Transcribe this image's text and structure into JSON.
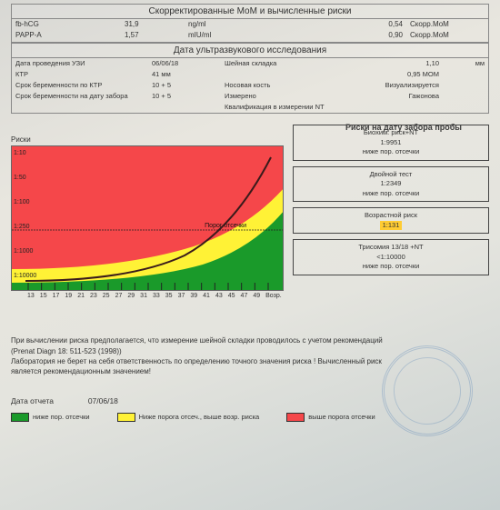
{
  "section1": {
    "title": "Скорректированные МоМ и вычисленные риски",
    "rows": [
      {
        "l": "fb-hCG",
        "v": "31,9",
        "u": "ng/ml",
        "rv": "0,54",
        "rl": "Скорр.МоМ"
      },
      {
        "l": "PAPP-A",
        "v": "1,57",
        "u": "mIU/ml",
        "rv": "0,90",
        "rl": "Скорр.МоМ"
      }
    ]
  },
  "section2": {
    "title": "Дата ультразвукового исследования",
    "rows": [
      {
        "l": "Дата проведения УЗИ",
        "v": "06/06/18",
        "r": "Шейная складка",
        "rv": "1,10",
        "ru": "мм"
      },
      {
        "l": "КТР",
        "v": "41 мм",
        "r": "",
        "rv": "0,95 МОМ",
        "ru": ""
      },
      {
        "l": "Срок беременности по КТР",
        "v": "10 + 5",
        "r": "Носовая кость",
        "rv": "Визуализируется",
        "ru": ""
      },
      {
        "l": "Срок беременности на дату забора",
        "v": "10 + 5",
        "r": "Измерено",
        "rv": "Гажонова",
        "ru": ""
      },
      {
        "l": "",
        "v": "",
        "r": "Квалификация в измерении NT",
        "rv": "",
        "ru": ""
      }
    ]
  },
  "risks": {
    "header": "Риски на дату забора пробы",
    "boxes": [
      {
        "t": "Биохим. риск+NT",
        "v": "1:9951",
        "s": "ниже пор. отсечки",
        "hl": false
      },
      {
        "t": "Двойной тест",
        "v": "1:2349",
        "s": "ниже пор. отсечки",
        "hl": false
      },
      {
        "t": "Возрастной риск",
        "v": "1:131",
        "s": "",
        "hl": true
      },
      {
        "t": "Трисомия 13/18 +NT",
        "v": "<1:10000",
        "s": "ниже пор. отсечки",
        "hl": false
      }
    ]
  },
  "chart": {
    "title": "Риски",
    "ylabels": [
      "1:10",
      "1:50",
      "1:100",
      "1:250",
      "1:1000",
      "1:10000"
    ],
    "threshold": "Порог отсечки",
    "xlabels": [
      "13",
      "15",
      "17",
      "19",
      "21",
      "23",
      "25",
      "27",
      "29",
      "31",
      "33",
      "35",
      "37",
      "39",
      "41",
      "43",
      "45",
      "47",
      "49"
    ],
    "xaxis_label": "Возр.",
    "green": "#1a9a2a",
    "yellow": "#fff236",
    "red": "#f5474a",
    "line": "#3a1b1b"
  },
  "footnote": {
    "l1": "При вычислении риска предполагается, что измерение шейной складки проводилось с учетом рекомендаций",
    "l2": "(Prenat Diagn 18: 511-523 (1998))",
    "l3": "Лаборатория не берет на себя ответственность по определению точного значения риска ! Вычисленный риск",
    "l4": "является рекомендационным значением!"
  },
  "report_date": {
    "label": "Дата отчета",
    "value": "07/06/18"
  },
  "legend": [
    {
      "c": "#1a9a2a",
      "t": "ниже пор. отсечки"
    },
    {
      "c": "#fff236",
      "t": "Ниже порога отсеч., выше возр. риска"
    },
    {
      "c": "#f5474a",
      "t": "выше порога отсечки"
    }
  ]
}
